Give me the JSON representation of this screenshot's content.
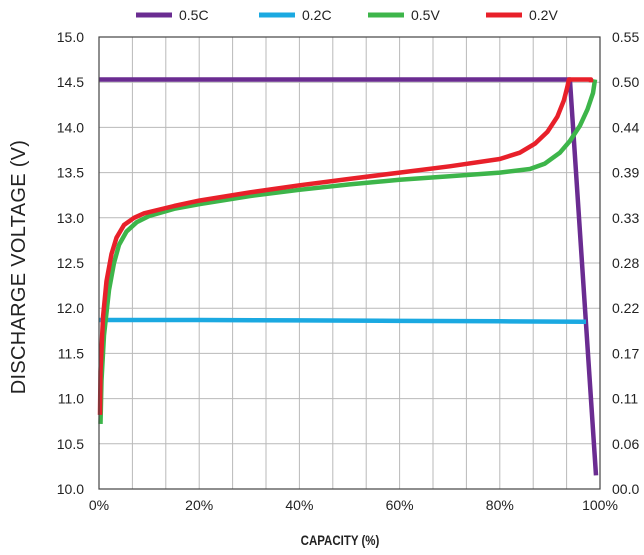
{
  "chart_data": {
    "type": "line",
    "title": "",
    "xlabel": "CAPACITY (%)",
    "ylabel": "DISCHARGE VOLTAGE (V)",
    "xlim": [
      0,
      100
    ],
    "ylim": [
      10.0,
      15.0
    ],
    "x_ticks": [
      "0%",
      "20%",
      "40%",
      "60%",
      "80%",
      "100%"
    ],
    "y_ticks": [
      "10.0",
      "10.5",
      "11.0",
      "11.5",
      "12.0",
      "12.5",
      "13.0",
      "13.5",
      "14.0",
      "14.5",
      "15.0"
    ],
    "y2_ticks": [
      "00.0",
      "0.06",
      "0.11",
      "0.17",
      "0.22",
      "0.28",
      "0.33",
      "0.39",
      "0.44",
      "0.50",
      "0.55"
    ],
    "grid": true,
    "legend_position": "top",
    "series": [
      {
        "name": "0.5C",
        "color": "#6a2c91",
        "points": [
          [
            0,
            14.53
          ],
          [
            94.0,
            14.53
          ],
          [
            99.2,
            10.15
          ]
        ]
      },
      {
        "name": "0.2C",
        "color": "#1ba9e1",
        "points": [
          [
            0,
            11.87
          ],
          [
            20,
            11.87
          ],
          [
            40,
            11.865
          ],
          [
            60,
            11.86
          ],
          [
            80,
            11.855
          ],
          [
            97.2,
            11.85
          ]
        ]
      },
      {
        "name": "0.5V",
        "color": "#3db54a",
        "points": [
          [
            0.3,
            10.72
          ],
          [
            0.5,
            11.2
          ],
          [
            1.0,
            11.7
          ],
          [
            2.0,
            12.2
          ],
          [
            3.0,
            12.5
          ],
          [
            4.0,
            12.7
          ],
          [
            5.5,
            12.85
          ],
          [
            7.5,
            12.95
          ],
          [
            10,
            13.02
          ],
          [
            15,
            13.1
          ],
          [
            20,
            13.15
          ],
          [
            30,
            13.24
          ],
          [
            40,
            13.31
          ],
          [
            50,
            13.37
          ],
          [
            60,
            13.42
          ],
          [
            70,
            13.46
          ],
          [
            80,
            13.5
          ],
          [
            86,
            13.54
          ],
          [
            89,
            13.6
          ],
          [
            92,
            13.72
          ],
          [
            94,
            13.85
          ],
          [
            96,
            14.02
          ],
          [
            97.5,
            14.2
          ],
          [
            98.6,
            14.38
          ],
          [
            99.0,
            14.53
          ]
        ]
      },
      {
        "name": "0.2V",
        "color": "#e8202a",
        "points": [
          [
            0.2,
            10.82
          ],
          [
            0.3,
            11.3
          ],
          [
            0.8,
            11.9
          ],
          [
            1.5,
            12.3
          ],
          [
            2.5,
            12.6
          ],
          [
            3.5,
            12.78
          ],
          [
            5.0,
            12.92
          ],
          [
            7.0,
            13.0
          ],
          [
            9.0,
            13.05
          ],
          [
            15,
            13.13
          ],
          [
            20,
            13.19
          ],
          [
            30,
            13.28
          ],
          [
            40,
            13.36
          ],
          [
            50,
            13.43
          ],
          [
            60,
            13.5
          ],
          [
            70,
            13.57
          ],
          [
            80,
            13.65
          ],
          [
            84,
            13.72
          ],
          [
            87,
            13.82
          ],
          [
            89.5,
            13.95
          ],
          [
            91.5,
            14.12
          ],
          [
            92.8,
            14.3
          ],
          [
            93.5,
            14.45
          ],
          [
            93.8,
            14.53
          ],
          [
            98.2,
            14.53
          ],
          [
            98.2,
            14.5
          ]
        ]
      }
    ]
  }
}
